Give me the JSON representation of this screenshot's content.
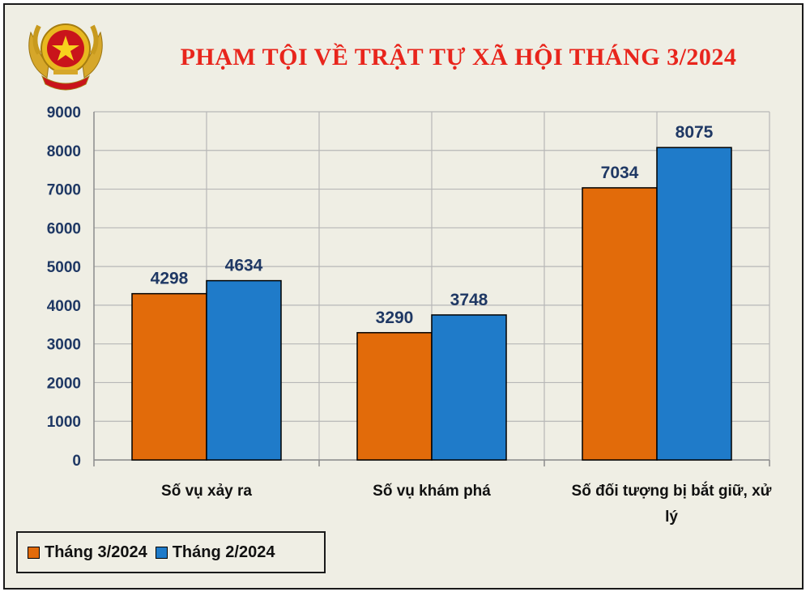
{
  "chart_data": {
    "type": "bar",
    "title": "PHẠM TỘI VỀ TRẬT TỰ XÃ HỘI THÁNG 3/2024",
    "categories": [
      [
        "Số vụ xảy ra"
      ],
      [
        "Số vụ khám phá"
      ],
      [
        "Số đối tượng bị bắt giữ, xử",
        "lý"
      ]
    ],
    "series": [
      {
        "name": "Tháng 3/2024",
        "color": "#e26b0a",
        "values": [
          4298,
          3290,
          7034
        ]
      },
      {
        "name": "Tháng 2/2024",
        "color": "#1f7bc9",
        "values": [
          4634,
          3748,
          8075
        ]
      }
    ],
    "ylim": [
      0,
      9000
    ],
    "yticks": [
      "0",
      "1000",
      "2000",
      "3000",
      "4000",
      "5000",
      "6000",
      "7000",
      "8000",
      "9000"
    ],
    "grid": true,
    "legend_position": "bottom-left",
    "data_labels": true
  }
}
